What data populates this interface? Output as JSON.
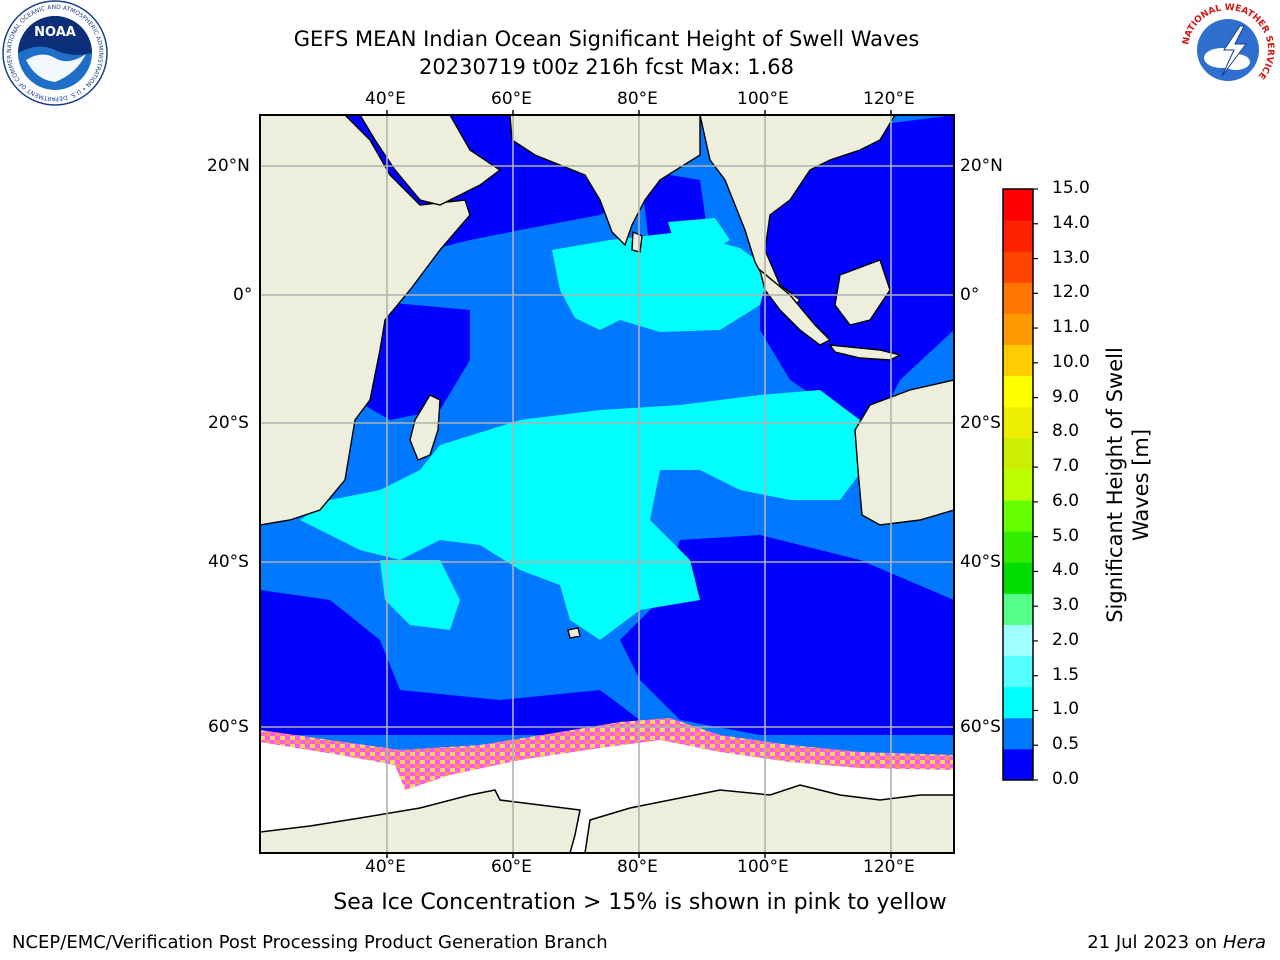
{
  "title": {
    "line1": "GEFS MEAN Indian Ocean Significant Height of Swell Waves",
    "line2": "20230719 t00z 216h fcst   Max: 1.68"
  },
  "map": {
    "lon_ticks": [
      "40°E",
      "60°E",
      "80°E",
      "100°E",
      "120°E"
    ],
    "lat_ticks": [
      "20°N",
      "0°",
      "20°S",
      "40°S",
      "60°S"
    ],
    "colors": {
      "land": "#eeeedd",
      "band_0_0_5": "#0000ff",
      "band_0_5_1_0": "#0078ff",
      "band_1_0_1_5": "#00ffff",
      "ice_pink": "#ff55ff",
      "ice_yellow": "#ffdd55",
      "grid": "#b0b0b0"
    }
  },
  "colorbar": {
    "label_line1": "Significant Height of Swell",
    "label_line2": "Waves [m]",
    "ticks": [
      "15.0",
      "14.0",
      "13.0",
      "12.0",
      "11.0",
      "10.0",
      "9.0",
      "8.0",
      "7.0",
      "6.0",
      "5.0",
      "4.0",
      "3.0",
      "2.0",
      "1.5",
      "1.0",
      "0.5",
      "0.0"
    ],
    "colors": [
      "#0000ff",
      "#0078ff",
      "#00ffff",
      "#55ffff",
      "#a0ffff",
      "#55ff88",
      "#00dd00",
      "#33ee00",
      "#66ff00",
      "#bbff00",
      "#ccee00",
      "#eeee00",
      "#ffff00",
      "#ffcc00",
      "#ff9900",
      "#ff7700",
      "#ff4400",
      "#ff2200",
      "#ff0000"
    ]
  },
  "caption": "Sea Ice Concentration > 15% is shown in pink to yellow",
  "footer": {
    "left": "NCEP/EMC/Verification Post Processing Product Generation Branch",
    "right_prefix": "21 Jul 2023 on ",
    "right_host": "Hera"
  },
  "logos": {
    "noaa_text": "NOAA",
    "noaa_ring": "NATIONAL OCEANIC AND ATMOSPHERIC ADMINISTRATION • U.S. DEPARTMENT OF COMMERCE",
    "nws_ring": "NATIONAL WEATHER SERVICE"
  }
}
